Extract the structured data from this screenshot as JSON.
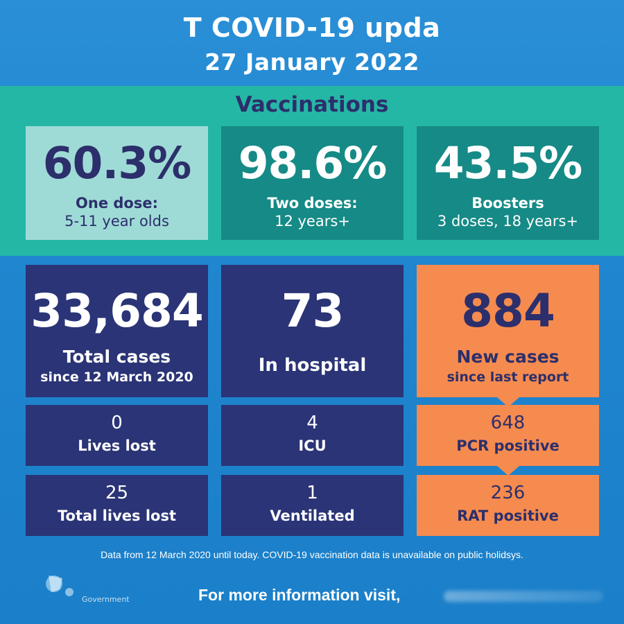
{
  "header": {
    "title": "T COVID-19 upda",
    "date": "27 January 2022"
  },
  "vaccinations": {
    "heading": "Vaccinations",
    "items": [
      {
        "value": "60.3%",
        "label": "One dose:",
        "sublabel": "5-11 year olds"
      },
      {
        "value": "98.6%",
        "label": "Two doses:",
        "sublabel": "12 years+"
      },
      {
        "value": "43.5%",
        "label": "Boosters",
        "sublabel": "3 doses, 18 years+"
      }
    ]
  },
  "stats": {
    "total_cases": {
      "value": "33,684",
      "label": "Total cases",
      "sublabel": "since 12 March 2020"
    },
    "in_hospital": {
      "value": "73",
      "label": "In hospital"
    },
    "new_cases": {
      "value": "884",
      "label": "New cases",
      "sublabel": "since last report"
    },
    "lives_lost": {
      "value": "0",
      "label": "Lives lost"
    },
    "icu": {
      "value": "4",
      "label": "ICU"
    },
    "pcr_positive": {
      "value": "648",
      "label": "PCR positive"
    },
    "total_lives_lost": {
      "value": "25",
      "label": "Total lives lost"
    },
    "ventilated": {
      "value": "1",
      "label": "Ventilated"
    },
    "rat_positive": {
      "value": "236",
      "label": "RAT positive"
    }
  },
  "footer": {
    "note": "Data from 12 March 2020 until today.  COVID-19 vaccination data is unavailable on public holidsys.",
    "more_info": "For more information visit,",
    "logo_text": "Government"
  },
  "colors": {
    "background": "#1f86cf",
    "teal_band": "#25b7a6",
    "navy": "#2a3476",
    "orange": "#f68b4f"
  }
}
